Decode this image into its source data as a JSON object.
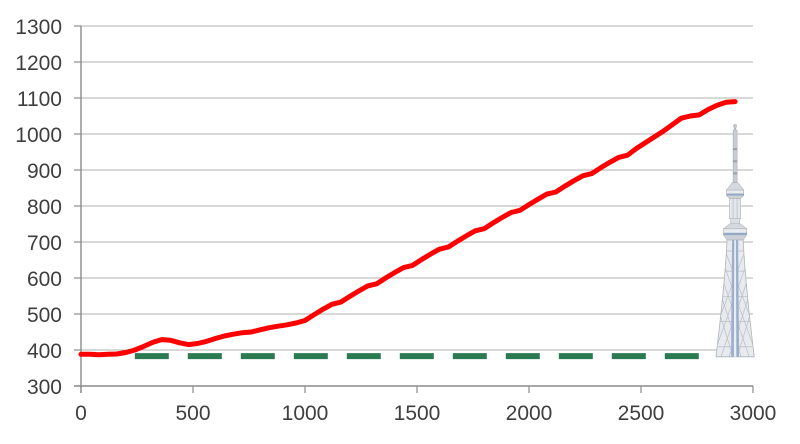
{
  "chart_data": {
    "type": "line",
    "title": "",
    "xlabel": "",
    "ylabel": "",
    "legend": "none",
    "grid": "horizontal",
    "background": "#ffffff",
    "x_axis": {
      "min": 0,
      "max": 3000,
      "ticks": [
        0,
        500,
        1000,
        1500,
        2000,
        2500,
        3000
      ]
    },
    "y_axis": {
      "min": 300,
      "max": 1300,
      "ticks": [
        300,
        400,
        500,
        600,
        700,
        800,
        900,
        1000,
        1100,
        1200,
        1300
      ]
    },
    "series": [
      {
        "name": "rising-red-line",
        "type": "line",
        "style": "solid",
        "color": "#fe0000",
        "width": 5,
        "points": [
          [
            0,
            388
          ],
          [
            40,
            388
          ],
          [
            80,
            387
          ],
          [
            120,
            388
          ],
          [
            160,
            389
          ],
          [
            200,
            393
          ],
          [
            240,
            400
          ],
          [
            280,
            410
          ],
          [
            320,
            421
          ],
          [
            360,
            429
          ],
          [
            400,
            427
          ],
          [
            440,
            420
          ],
          [
            480,
            415
          ],
          [
            520,
            418
          ],
          [
            560,
            424
          ],
          [
            600,
            432
          ],
          [
            640,
            439
          ],
          [
            680,
            444
          ],
          [
            720,
            448
          ],
          [
            760,
            450
          ],
          [
            800,
            456
          ],
          [
            840,
            462
          ],
          [
            880,
            466
          ],
          [
            920,
            470
          ],
          [
            960,
            475
          ],
          [
            1000,
            482
          ],
          [
            1040,
            498
          ],
          [
            1080,
            513
          ],
          [
            1120,
            527
          ],
          [
            1160,
            533
          ],
          [
            1200,
            549
          ],
          [
            1240,
            564
          ],
          [
            1280,
            578
          ],
          [
            1320,
            584
          ],
          [
            1360,
            600
          ],
          [
            1400,
            615
          ],
          [
            1440,
            629
          ],
          [
            1480,
            635
          ],
          [
            1520,
            651
          ],
          [
            1560,
            666
          ],
          [
            1600,
            680
          ],
          [
            1640,
            686
          ],
          [
            1680,
            702
          ],
          [
            1720,
            717
          ],
          [
            1760,
            731
          ],
          [
            1800,
            737
          ],
          [
            1840,
            753
          ],
          [
            1880,
            768
          ],
          [
            1920,
            782
          ],
          [
            1960,
            788
          ],
          [
            2000,
            804
          ],
          [
            2040,
            819
          ],
          [
            2080,
            833
          ],
          [
            2120,
            839
          ],
          [
            2160,
            855
          ],
          [
            2200,
            870
          ],
          [
            2240,
            884
          ],
          [
            2280,
            890
          ],
          [
            2320,
            906
          ],
          [
            2360,
            921
          ],
          [
            2400,
            935
          ],
          [
            2440,
            941
          ],
          [
            2480,
            960
          ],
          [
            2520,
            976
          ],
          [
            2560,
            992
          ],
          [
            2600,
            1008
          ],
          [
            2640,
            1026
          ],
          [
            2680,
            1044
          ],
          [
            2720,
            1050
          ],
          [
            2760,
            1053
          ],
          [
            2800,
            1068
          ],
          [
            2840,
            1080
          ],
          [
            2880,
            1088
          ],
          [
            2920,
            1090
          ]
        ]
      },
      {
        "name": "baseline-green-dashed",
        "type": "line",
        "style": "dashed",
        "color": "#2c7a51",
        "width": 6,
        "points": [
          [
            240,
            383
          ],
          [
            2810,
            383
          ]
        ]
      }
    ],
    "annotations": [
      {
        "name": "tokyo-skytree-illustration",
        "x": 2920,
        "base_value": 381,
        "top_value": 1025
      }
    ]
  }
}
